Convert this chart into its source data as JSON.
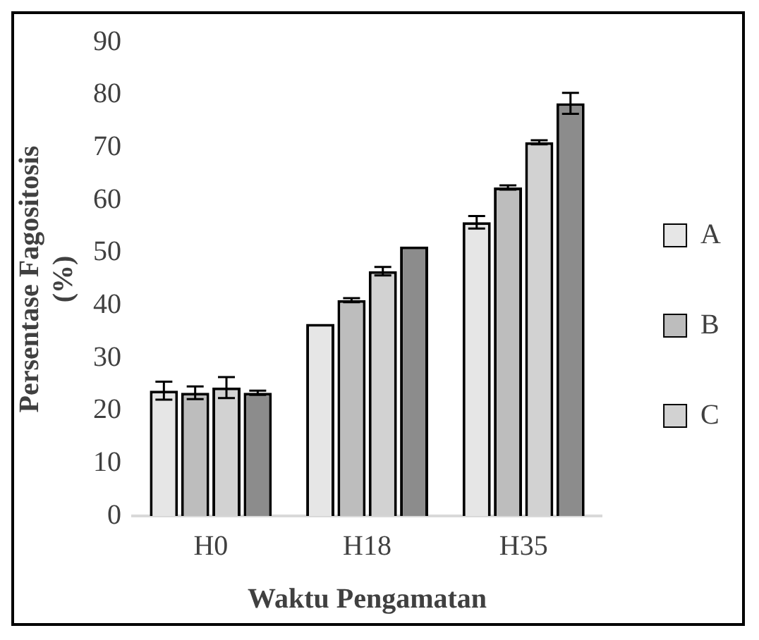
{
  "chart_data": {
    "type": "bar",
    "categories": [
      "H0",
      "H18",
      "H35"
    ],
    "series": [
      {
        "name": "A",
        "color": "#e6e6e6",
        "values": [
          23.8,
          36.5,
          55.8
        ],
        "errors": [
          1.7,
          null,
          1.2
        ]
      },
      {
        "name": "B",
        "color": "#bdbdbd",
        "values": [
          23.4,
          41,
          62.4
        ],
        "errors": [
          1.2,
          0.4,
          0.4
        ]
      },
      {
        "name": "C",
        "color": "#d2d2d2",
        "values": [
          24.4,
          46.5,
          71
        ],
        "errors": [
          2,
          0.8,
          0.4
        ]
      },
      {
        "color": "#8c8c8c",
        "values": [
          23.4,
          51.2,
          78.4
        ],
        "errors": [
          0.4,
          null,
          2
        ]
      }
    ],
    "xlabel": "Waktu Pengamatan",
    "ylabel": "Persentase Fagositosis (%)",
    "ylim": [
      0,
      90
    ],
    "yticks": [
      0,
      10,
      20,
      30,
      40,
      50,
      60,
      70,
      80,
      90
    ],
    "grid": false,
    "legend": "right"
  }
}
